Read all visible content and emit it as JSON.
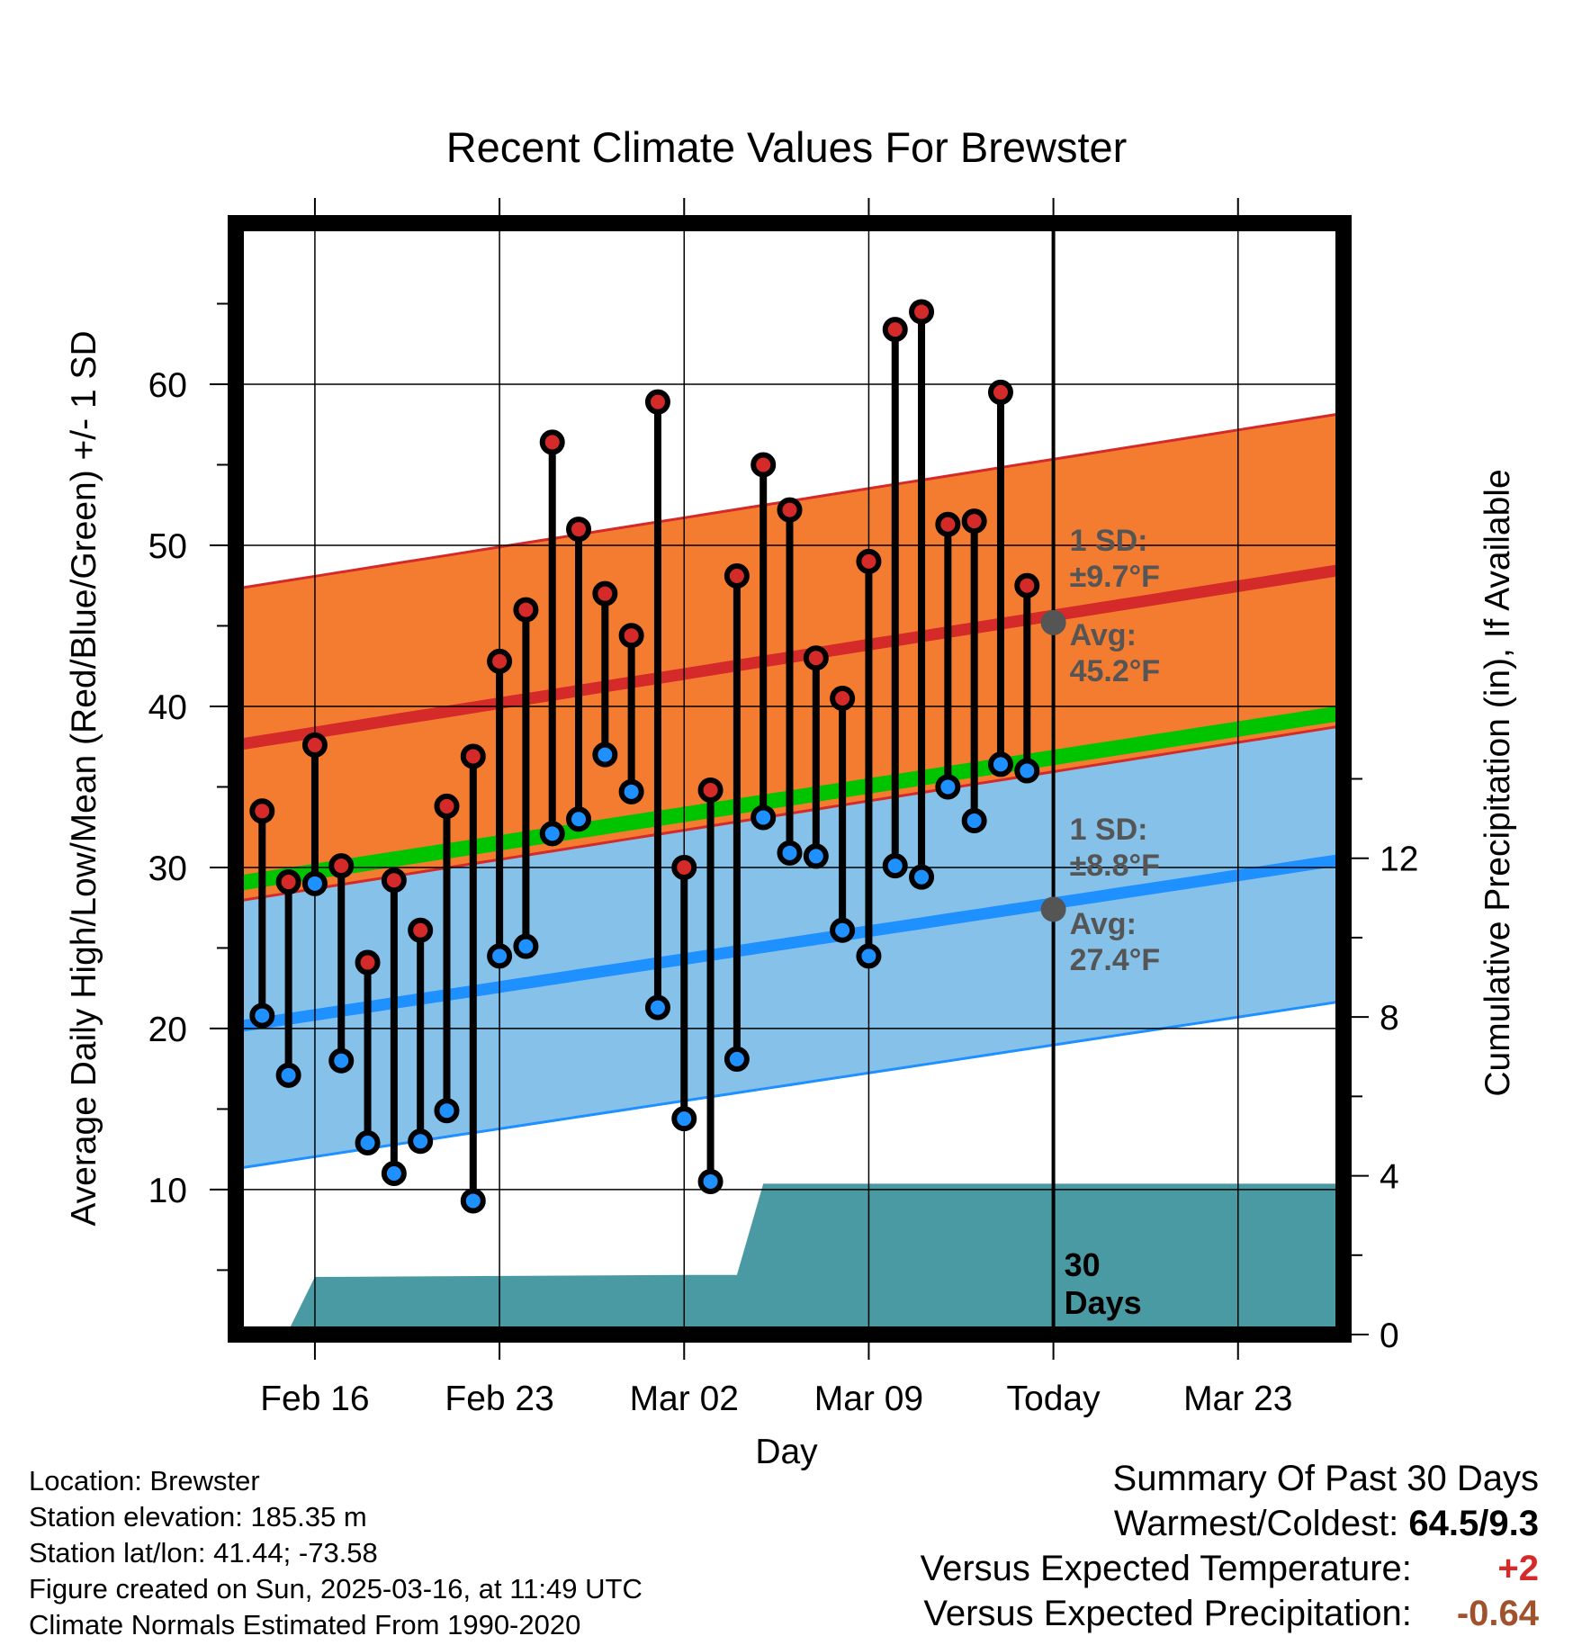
{
  "chart_data": {
    "type": "line",
    "title": "Recent Climate Values For Brewster",
    "xlabel": "Day",
    "ylabel": "Average Daily High/Low/Mean (Red/Blue/Green) +/- 1 SD",
    "y2label": "Cumulative Precipitation (in), If Available",
    "x_tick_labels": [
      "Feb 16",
      "Feb 23",
      "Mar 02",
      "Mar 09",
      "Today",
      "Mar 23"
    ],
    "x_tick_days": [
      2,
      9,
      16,
      23,
      30,
      37
    ],
    "xlim": [
      -1,
      41
    ],
    "ylim": [
      1,
      70
    ],
    "y_ticks": [
      10,
      20,
      30,
      40,
      50,
      60
    ],
    "y2lim": [
      0,
      28
    ],
    "y2_ticks": [
      0,
      4,
      8,
      12
    ],
    "today_day": 30,
    "window_label": "30\nDays",
    "normals": {
      "high_mean": [
        37.6,
        48.5
      ],
      "high_sd": 9.7,
      "low_mean": [
        20.1,
        30.5
      ],
      "low_sd": 8.8,
      "mean": [
        29.0,
        39.6
      ],
      "days": [
        -1,
        41
      ]
    },
    "annotations": {
      "high_sd_label": "1 SD:\n±9.7°F",
      "high_avg_label": "Avg:\n45.2°F",
      "high_avg_value": 45.2,
      "low_sd_label": "1 SD:\n±8.8°F",
      "low_avg_label": "Avg:\n27.4°F",
      "low_avg_value": 27.4
    },
    "series": [
      {
        "name": "High",
        "color": "#d42a2a",
        "values": [
          33.5,
          29.1,
          37.6,
          30.1,
          24.1,
          29.2,
          26.1,
          33.8,
          36.9,
          42.8,
          46.0,
          56.4,
          51.0,
          47.0,
          44.4,
          58.9,
          30.0,
          34.8,
          48.1,
          55.0,
          52.2,
          43.0,
          40.5,
          49.0,
          63.4,
          64.5,
          51.3,
          51.5,
          59.5,
          47.5
        ]
      },
      {
        "name": "Low",
        "color": "#1e90ff",
        "values": [
          20.8,
          17.1,
          29.0,
          18.0,
          12.9,
          11.0,
          13.0,
          14.9,
          9.3,
          24.5,
          25.1,
          32.1,
          33.0,
          37.0,
          34.7,
          21.3,
          14.4,
          10.5,
          18.1,
          33.1,
          30.9,
          30.7,
          26.1,
          24.5,
          30.1,
          29.4,
          35.0,
          32.9,
          36.4,
          36.0
        ]
      },
      {
        "name": "Precipitation",
        "color": "#4a9aa3",
        "days": [
          -1,
          0.5,
          1,
          2,
          16,
          18,
          19,
          41
        ],
        "values": [
          0.0,
          0.0,
          0.1,
          1.45,
          1.5,
          1.5,
          3.8,
          3.8
        ]
      }
    ],
    "days": [
      0,
      1,
      2,
      3,
      4,
      5,
      6,
      7,
      8,
      9,
      10,
      11,
      12,
      13,
      14,
      15,
      16,
      17,
      18,
      19,
      20,
      21,
      22,
      23,
      24,
      25,
      26,
      27,
      28,
      29
    ]
  },
  "info": {
    "location": "Location: Brewster",
    "elevation": "Station elevation: 185.35 m",
    "latlon": "Station lat/lon: 41.44; -73.58",
    "created": "Figure created on Sun, 2025-03-16, at 11:49 UTC",
    "normals": "Climate Normals Estimated From 1990-2020"
  },
  "summary": {
    "title": "Summary Of Past 30 Days",
    "warmest_label": "Warmest/Coldest:",
    "warmest_value": "64.5/9.3",
    "temp_label": "Versus Expected Temperature:",
    "temp_value": "+2",
    "temp_color": "#d42a2a",
    "precip_label": "Versus Expected Precipitation:",
    "precip_value": "-0.64",
    "precip_color": "#a0522d"
  },
  "colors": {
    "high_band": "#f47c30",
    "low_band": "#85c1e9",
    "mean_line": "#00c400",
    "high_line": "#d42a2a",
    "low_line": "#1e90ff",
    "annotation_text": "#555555"
  }
}
